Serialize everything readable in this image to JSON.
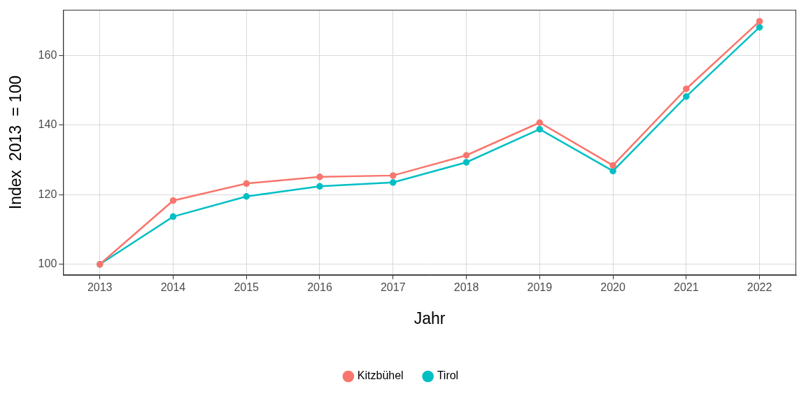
{
  "chart_data": {
    "type": "line",
    "x_label": "Jahr",
    "y_label": "Index  2013  = 100",
    "categories": [
      "2013",
      "2014",
      "2015",
      "2016",
      "2017",
      "2018",
      "2019",
      "2020",
      "2021",
      "2022"
    ],
    "series": [
      {
        "name": "Kitzbühel",
        "color": "#F8766D",
        "values": [
          100,
          118.3,
          123.2,
          125.1,
          125.5,
          131.3,
          140.7,
          128.4,
          150.4,
          169.8
        ]
      },
      {
        "name": "Tirol",
        "color": "#00BFC4",
        "values": [
          100,
          113.7,
          119.5,
          122.4,
          123.5,
          129.3,
          138.8,
          126.8,
          148.2,
          168.1
        ]
      }
    ],
    "ylim": [
      96.9,
      173.1
    ],
    "yticks": [
      100,
      120,
      140,
      160
    ],
    "grid": true,
    "legend": "bottom",
    "marker": "circle"
  }
}
